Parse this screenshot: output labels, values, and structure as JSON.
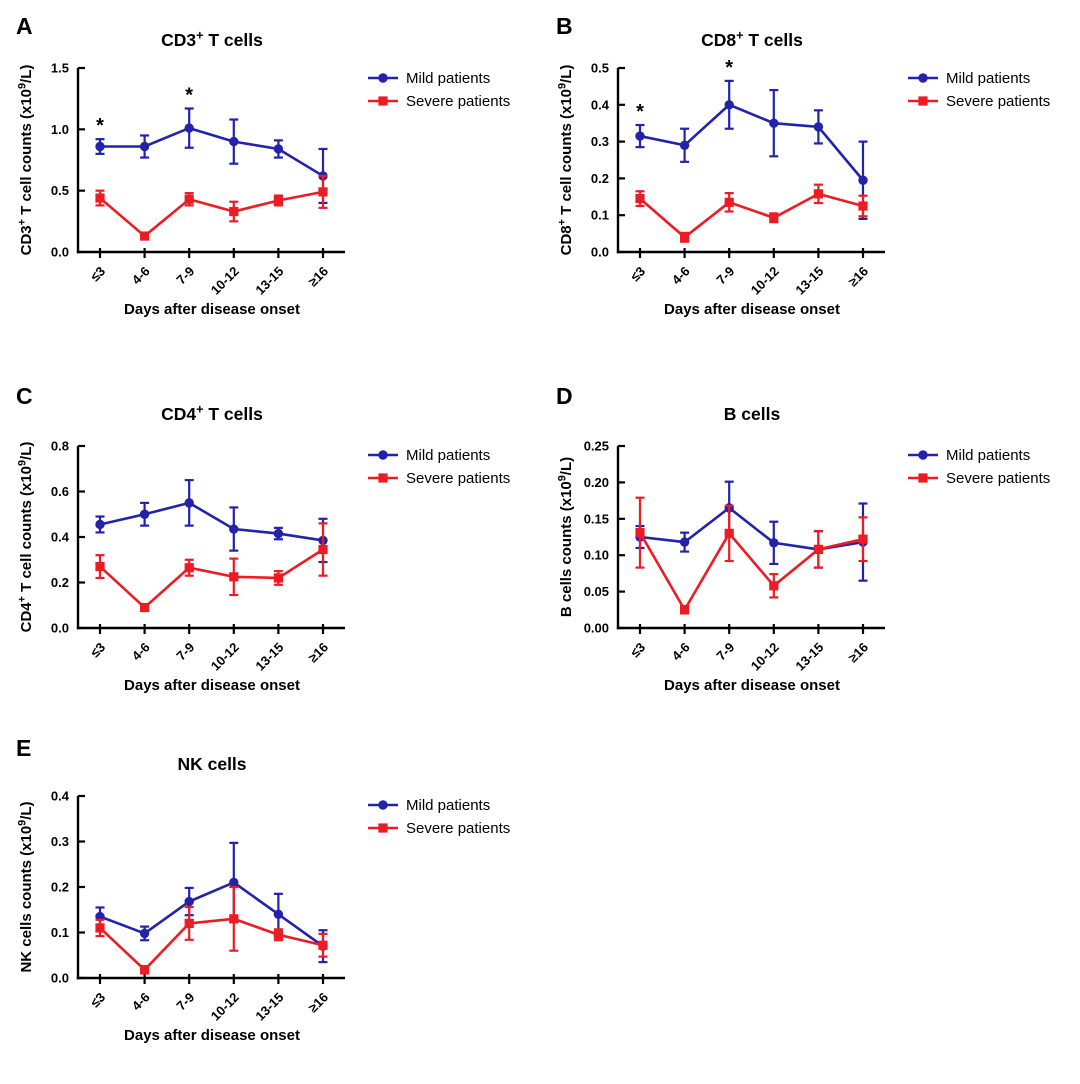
{
  "figure": {
    "background": "#ffffff",
    "description": "Five-panel line chart figure of lymphocyte subset counts over days after disease onset"
  },
  "colors": {
    "mild": "#2222aa",
    "severe": "#ec1c24",
    "axis": "#000000",
    "text": "#000000"
  },
  "legend_labels": {
    "mild": "Mild patients",
    "severe": "Severe patients"
  },
  "x_axis_title": "Days after disease onset",
  "categories": [
    "≤3",
    "4-6",
    "7-9",
    "10-12",
    "13-15",
    "≥16"
  ],
  "chart_data": [
    {
      "panel_letter": "A",
      "type": "line",
      "title": "CD3⁺ T cells",
      "ylabel": "CD3⁺ T cell counts (x10⁹/L)",
      "xlabel": "Days after disease onset",
      "ylim": [
        0,
        1.5
      ],
      "yticks": [
        "0.0",
        "0.5",
        "1.0",
        "1.5"
      ],
      "grid": false,
      "legend_position": "right-top",
      "categories": [
        "≤3",
        "4-6",
        "7-9",
        "10-12",
        "13-15",
        "≥16"
      ],
      "series": [
        {
          "name": "Mild patients",
          "marker": "circle",
          "color": "#2222aa",
          "values": [
            0.86,
            0.86,
            1.01,
            0.9,
            0.84,
            0.62
          ],
          "sem": [
            0.06,
            0.09,
            0.16,
            0.18,
            0.07,
            0.22
          ]
        },
        {
          "name": "Severe patients",
          "marker": "square",
          "color": "#ec1c24",
          "values": [
            0.44,
            0.13,
            0.43,
            0.33,
            0.42,
            0.49
          ],
          "sem": [
            0.06,
            0.025,
            0.05,
            0.08,
            0.04,
            0.13
          ]
        }
      ],
      "significance": [
        {
          "category": "≤3",
          "label": "*",
          "series": "Mild patients"
        },
        {
          "category": "7-9",
          "label": "*",
          "series": "Mild patients"
        }
      ]
    },
    {
      "panel_letter": "B",
      "type": "line",
      "title": "CD8⁺ T cells",
      "ylabel": "CD8⁺ T cell counts (x10⁹/L)",
      "xlabel": "Days after disease onset",
      "ylim": [
        0,
        0.5
      ],
      "yticks": [
        "0.0",
        "0.1",
        "0.2",
        "0.3",
        "0.4",
        "0.5"
      ],
      "grid": false,
      "legend_position": "right-top",
      "categories": [
        "≤3",
        "4-6",
        "7-9",
        "10-12",
        "13-15",
        "≥16"
      ],
      "series": [
        {
          "name": "Mild patients",
          "marker": "circle",
          "color": "#2222aa",
          "values": [
            0.315,
            0.29,
            0.4,
            0.35,
            0.34,
            0.195
          ],
          "sem": [
            0.03,
            0.045,
            0.065,
            0.09,
            0.045,
            0.105
          ]
        },
        {
          "name": "Severe patients",
          "marker": "square",
          "color": "#ec1c24",
          "values": [
            0.145,
            0.04,
            0.135,
            0.093,
            0.158,
            0.125
          ],
          "sem": [
            0.02,
            0.012,
            0.025,
            0.012,
            0.025,
            0.028
          ]
        }
      ],
      "significance": [
        {
          "category": "≤3",
          "label": "*",
          "series": "Mild patients"
        },
        {
          "category": "7-9",
          "label": "*",
          "series": "Mild patients"
        }
      ]
    },
    {
      "panel_letter": "C",
      "type": "line",
      "title": "CD4⁺ T cells",
      "ylabel": "CD4⁺ T cell counts (x10⁹/L)",
      "xlabel": "Days after disease onset",
      "ylim": [
        0,
        0.8
      ],
      "yticks": [
        "0.0",
        "0.2",
        "0.4",
        "0.6",
        "0.8"
      ],
      "grid": false,
      "legend_position": "right-top",
      "categories": [
        "≤3",
        "4-6",
        "7-9",
        "10-12",
        "13-15",
        "≥16"
      ],
      "series": [
        {
          "name": "Mild patients",
          "marker": "circle",
          "color": "#2222aa",
          "values": [
            0.455,
            0.5,
            0.55,
            0.435,
            0.415,
            0.385
          ],
          "sem": [
            0.035,
            0.05,
            0.1,
            0.095,
            0.025,
            0.095
          ]
        },
        {
          "name": "Severe patients",
          "marker": "square",
          "color": "#ec1c24",
          "values": [
            0.27,
            0.09,
            0.265,
            0.225,
            0.22,
            0.345
          ],
          "sem": [
            0.05,
            0.012,
            0.035,
            0.08,
            0.03,
            0.115
          ]
        }
      ],
      "significance": []
    },
    {
      "panel_letter": "D",
      "type": "line",
      "title": "B cells",
      "ylabel": "B cells counts (x10⁹/L)",
      "xlabel": "Days after disease onset",
      "ylim": [
        0,
        0.25
      ],
      "yticks": [
        "0.00",
        "0.05",
        "0.10",
        "0.15",
        "0.20",
        "0.25"
      ],
      "grid": false,
      "legend_position": "right-top",
      "categories": [
        "≤3",
        "4-6",
        "7-9",
        "10-12",
        "13-15",
        "≥16"
      ],
      "series": [
        {
          "name": "Mild patients",
          "marker": "circle",
          "color": "#2222aa",
          "values": [
            0.125,
            0.118,
            0.165,
            0.117,
            0.108,
            0.118
          ],
          "sem": [
            0.015,
            0.013,
            0.036,
            0.029,
            0.025,
            0.053
          ]
        },
        {
          "name": "Severe patients",
          "marker": "square",
          "color": "#ec1c24",
          "values": [
            0.131,
            0.025,
            0.13,
            0.058,
            0.108,
            0.122
          ],
          "sem": [
            0.048,
            0.005,
            0.038,
            0.016,
            0.025,
            0.03
          ]
        }
      ],
      "significance": []
    },
    {
      "panel_letter": "E",
      "type": "line",
      "title": "NK cells",
      "ylabel": "NK cells counts (x10⁹/L)",
      "xlabel": "Days after disease onset",
      "ylim": [
        0,
        0.4
      ],
      "yticks": [
        "0.0",
        "0.1",
        "0.2",
        "0.3",
        "0.4"
      ],
      "grid": false,
      "legend_position": "right-top",
      "categories": [
        "≤3",
        "4-6",
        "7-9",
        "10-12",
        "13-15",
        "≥16"
      ],
      "series": [
        {
          "name": "Mild patients",
          "marker": "circle",
          "color": "#2222aa",
          "values": [
            0.135,
            0.098,
            0.168,
            0.21,
            0.14,
            0.07
          ],
          "sem": [
            0.02,
            0.015,
            0.03,
            0.087,
            0.045,
            0.035
          ]
        },
        {
          "name": "Severe patients",
          "marker": "square",
          "color": "#ec1c24",
          "values": [
            0.11,
            0.018,
            0.12,
            0.13,
            0.095,
            0.072
          ],
          "sem": [
            0.018,
            0.008,
            0.036,
            0.07,
            0.012,
            0.025
          ]
        }
      ],
      "significance": []
    }
  ]
}
